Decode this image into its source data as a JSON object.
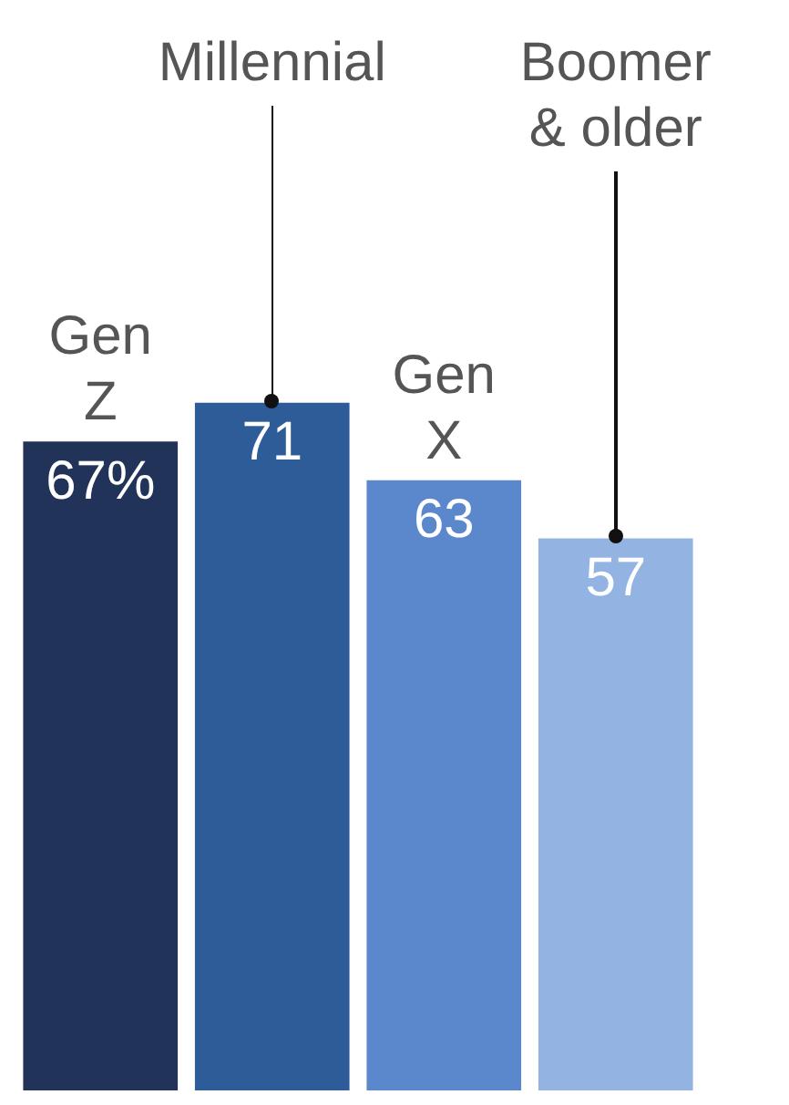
{
  "chart_data": {
    "type": "bar",
    "categories": [
      "Gen Z",
      "Millennial",
      "Gen X",
      "Boomer & older"
    ],
    "values": [
      67,
      71,
      63,
      57
    ],
    "colors": [
      "#22335a",
      "#2d5c99",
      "#5b87cc",
      "#93b4e3"
    ],
    "value_labels": [
      "67%",
      "71",
      "63",
      "57"
    ],
    "legend": false
  }
}
